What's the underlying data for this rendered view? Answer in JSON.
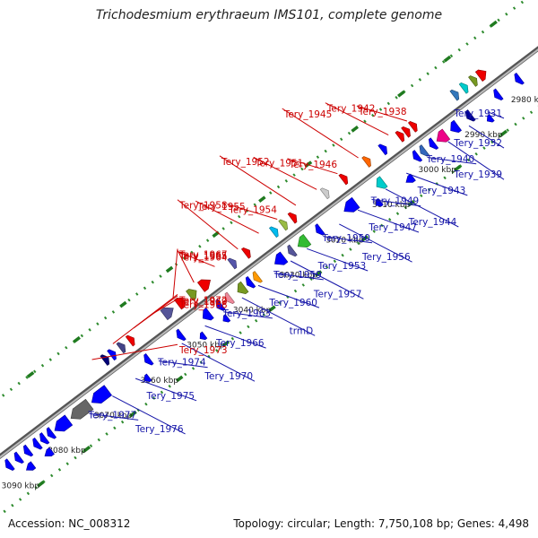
{
  "title": "Trichodesmium erythraeum IMS101, complete genome",
  "footer": {
    "accession": "Accession: NC_008312",
    "summary": "Topology: circular; Length: 7,750,108 bp; Genes: 4,498"
  },
  "colors": {
    "forward": "#0000ff",
    "reverse": "#ee0000",
    "backbone": "#888888",
    "tick": "#2e8b2e",
    "label_forward": "#1515a8",
    "label_reverse": "#cc0000"
  },
  "scale": {
    "unit": "kbp",
    "ticks": [
      {
        "kbp": 2980,
        "label": "2980 kbp"
      },
      {
        "kbp": 2990,
        "label": "2990 kbp"
      },
      {
        "kbp": 3000,
        "label": "3000 kbp"
      },
      {
        "kbp": 3010,
        "label": "3010 kbp"
      },
      {
        "kbp": 3020,
        "label": "3020 kbp"
      },
      {
        "kbp": 3030,
        "label": "3030 kbp"
      },
      {
        "kbp": 3040,
        "label": "3040 kbp"
      },
      {
        "kbp": 3050,
        "label": "3050 kbp"
      },
      {
        "kbp": 3060,
        "label": "3060 kbp"
      },
      {
        "kbp": 3070,
        "label": "3070 kbp"
      },
      {
        "kbp": 3080,
        "label": "3080 kbp"
      },
      {
        "kbp": 3090,
        "label": "3090 kbp"
      }
    ]
  },
  "labels_forward": [
    {
      "text": "Tery_1931",
      "kbp": 2990.0
    },
    {
      "text": "Tery_1932",
      "kbp": 2994.0
    },
    {
      "text": "Tery_1939",
      "kbp": 2998.5
    },
    {
      "text": "Tery_1940",
      "kbp": 3003.0
    },
    {
      "text": "Tery_1943",
      "kbp": 3007.5
    },
    {
      "text": "Tery_1944",
      "kbp": 3012.0
    },
    {
      "text": "Tery_1949",
      "kbp": 3015.0
    },
    {
      "text": "Tery_1947",
      "kbp": 3018.0
    },
    {
      "text": "Tery_1956",
      "kbp": 3022.0
    },
    {
      "text": "Tery_1950",
      "kbp": 3025.5
    },
    {
      "text": "Tery_1953",
      "kbp": 3029.0
    },
    {
      "text": "Tery_1957",
      "kbp": 3032.5
    },
    {
      "text": "Tery_1959",
      "kbp": 3036.0
    },
    {
      "text": "Tery_1960",
      "kbp": 3039.5
    },
    {
      "text": "trmD",
      "kbp": 3043.0
    },
    {
      "text": "Tery_1963",
      "kbp": 3047.0
    },
    {
      "text": "Tery_1966",
      "kbp": 3051.0
    },
    {
      "text": "Tery_1970",
      "kbp": 3056.0
    },
    {
      "text": "Tery_1974",
      "kbp": 3061.0
    },
    {
      "text": "Tery_1975",
      "kbp": 3066.0
    },
    {
      "text": "Tery_1976",
      "kbp": 3071.0
    },
    {
      "text": "Tery_1977",
      "kbp": 3076.0
    }
  ],
  "labels_reverse": [
    {
      "text": "Tery_1938",
      "kbp": 3002.0
    },
    {
      "text": "Tery_1942",
      "kbp": 3006.0
    },
    {
      "text": "Tery_1945",
      "kbp": 3012.5
    },
    {
      "text": "Tery_1946",
      "kbp": 3017.0
    },
    {
      "text": "Tery_1951",
      "kbp": 3021.5
    },
    {
      "text": "Tery_1952",
      "kbp": 3026.0
    },
    {
      "text": "Tery_1954",
      "kbp": 3030.0
    },
    {
      "text": "Tery_1955",
      "kbp": 3034.0
    },
    {
      "text": "Tery_1958",
      "kbp": 3038.5
    },
    {
      "text": "Tery_1964",
      "kbp": 3043.5
    },
    {
      "text": "Tery_1965",
      "kbp": 3048.0
    },
    {
      "text": "Tery_1967",
      "kbp": 3052.5
    },
    {
      "text": "Tery_1968",
      "kbp": 3057.0
    },
    {
      "text": "Tery_1969",
      "kbp": 3061.0
    },
    {
      "text": "Tery_1972",
      "kbp": 3065.5
    },
    {
      "text": "Tery_1973",
      "kbp": 3070.0
    }
  ],
  "genes_forward": [
    {
      "start": 2982.0,
      "end": 2983.0,
      "color": "#0000ff"
    },
    {
      "start": 2986.5,
      "end": 2987.5,
      "color": "#0000ff"
    },
    {
      "start": 2992.5,
      "end": 2993.5,
      "color": "#000099"
    },
    {
      "start": 2995.5,
      "end": 2997.0,
      "color": "#0000ff"
    },
    {
      "start": 2998.0,
      "end": 3000.0,
      "color": "#ee0088"
    },
    {
      "start": 3000.5,
      "end": 3001.5,
      "color": "#0000ff"
    },
    {
      "start": 3002.5,
      "end": 3003.5,
      "color": "#3366bb"
    },
    {
      "start": 3004.0,
      "end": 3005.0,
      "color": "#0000ff"
    },
    {
      "start": 3011.5,
      "end": 3013.0,
      "color": "#00cccc"
    },
    {
      "start": 3017.5,
      "end": 3020.0,
      "color": "#0000ff"
    },
    {
      "start": 3025.0,
      "end": 3026.0,
      "color": "#0000ff"
    },
    {
      "start": 3028.0,
      "end": 3030.0,
      "color": "#33bb33"
    },
    {
      "start": 3031.0,
      "end": 3032.0,
      "color": "#555599"
    },
    {
      "start": 3033.0,
      "end": 3035.0,
      "color": "#0000ff"
    },
    {
      "start": 3038.5,
      "end": 3039.5,
      "color": "#ff9900"
    },
    {
      "start": 3040.0,
      "end": 3041.0,
      "color": "#0000ff"
    },
    {
      "start": 3041.5,
      "end": 3043.0,
      "color": "#779922"
    },
    {
      "start": 3044.5,
      "end": 3045.5,
      "color": "#ee8899"
    },
    {
      "start": 3046.5,
      "end": 3047.5,
      "color": "#0000ff"
    },
    {
      "start": 3049.0,
      "end": 3050.5,
      "color": "#0000ff"
    },
    {
      "start": 3055.0,
      "end": 3056.0,
      "color": "#0000ff"
    },
    {
      "start": 3062.0,
      "end": 3063.0,
      "color": "#0000ff"
    },
    {
      "start": 3071.0,
      "end": 3074.5,
      "color": "#0000ff"
    },
    {
      "start": 3075.0,
      "end": 3079.0,
      "color": "#666666"
    },
    {
      "start": 3079.5,
      "end": 3082.5,
      "color": "#0000ff"
    },
    {
      "start": 3083.0,
      "end": 3084.0,
      "color": "#0000ff"
    },
    {
      "start": 3084.5,
      "end": 3085.5,
      "color": "#0000ff"
    },
    {
      "start": 3086.0,
      "end": 3087.0,
      "color": "#0000ff"
    },
    {
      "start": 3088.0,
      "end": 3089.0,
      "color": "#0000ff"
    },
    {
      "start": 3090.0,
      "end": 3091.0,
      "color": "#0000ff"
    },
    {
      "start": 3092.0,
      "end": 3093.0,
      "color": "#0000ff"
    }
  ],
  "genes_forward_outer": [
    {
      "start": 2990.0,
      "end": 2991.0,
      "color": "#0000ff"
    },
    {
      "start": 3007.0,
      "end": 3008.5,
      "color": "#0000ff"
    },
    {
      "start": 3014.0,
      "end": 3015.0,
      "color": "#0000ff"
    },
    {
      "start": 3047.0,
      "end": 3048.0,
      "color": "#0000ff"
    },
    {
      "start": 3052.0,
      "end": 3053.0,
      "color": "#0000ff"
    },
    {
      "start": 3064.0,
      "end": 3065.0,
      "color": "#0000ff"
    },
    {
      "start": 3085.0,
      "end": 3086.5,
      "color": "#0000ff"
    },
    {
      "start": 3089.0,
      "end": 3090.5,
      "color": "#0000ff"
    }
  ],
  "genes_reverse": [
    {
      "start": 2986.0,
      "end": 2987.5,
      "color": "#ee0000"
    },
    {
      "start": 2988.0,
      "end": 2989.0,
      "color": "#779922"
    },
    {
      "start": 2990.0,
      "end": 2991.0,
      "color": "#00cccc"
    },
    {
      "start": 2992.0,
      "end": 2993.0,
      "color": "#3377bb"
    },
    {
      "start": 3001.0,
      "end": 3002.0,
      "color": "#ee0000"
    },
    {
      "start": 3002.5,
      "end": 3003.5,
      "color": "#ee0000"
    },
    {
      "start": 3003.8,
      "end": 3004.8,
      "color": "#ee0000"
    },
    {
      "start": 3007.5,
      "end": 3008.5,
      "color": "#0000ff"
    },
    {
      "start": 3011.0,
      "end": 3012.0,
      "color": "#ff6600"
    },
    {
      "start": 3016.0,
      "end": 3017.0,
      "color": "#ee0000"
    },
    {
      "start": 3020.0,
      "end": 3021.0,
      "color": "#cccccc"
    },
    {
      "start": 3027.0,
      "end": 3028.0,
      "color": "#ee0000"
    },
    {
      "start": 3029.0,
      "end": 3030.0,
      "color": "#99bb44"
    },
    {
      "start": 3031.0,
      "end": 3032.0,
      "color": "#00bbee"
    },
    {
      "start": 3037.0,
      "end": 3038.0,
      "color": "#ee0000"
    },
    {
      "start": 3040.0,
      "end": 3041.0,
      "color": "#5555aa"
    },
    {
      "start": 3045.5,
      "end": 3047.5,
      "color": "#ee0000"
    },
    {
      "start": 3048.5,
      "end": 3050.0,
      "color": "#779922"
    },
    {
      "start": 3051.0,
      "end": 3052.5,
      "color": "#ee0000"
    },
    {
      "start": 3053.5,
      "end": 3055.5,
      "color": "#555599"
    },
    {
      "start": 3062.0,
      "end": 3063.0,
      "color": "#ee0000"
    },
    {
      "start": 3064.0,
      "end": 3065.0,
      "color": "#444488"
    },
    {
      "start": 3066.0,
      "end": 3067.0,
      "color": "#0000ff"
    },
    {
      "start": 3067.5,
      "end": 3068.5,
      "color": "#000077"
    }
  ]
}
